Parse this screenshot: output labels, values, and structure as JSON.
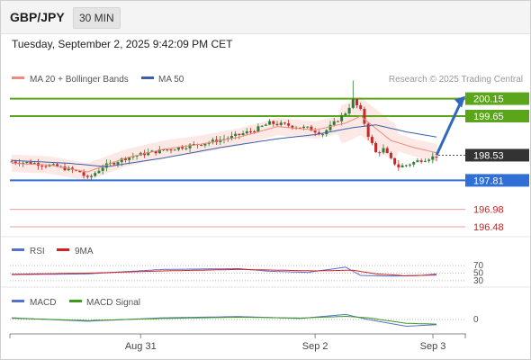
{
  "header": {
    "symbol": "GBP/JPY",
    "timeframe": "30 MIN"
  },
  "timestamp": "Tuesday, September 2, 2025 9:42:09 PM CET",
  "legend": {
    "ma20_label": "MA 20 + Bollinger Bands",
    "ma50_label": "MA 50",
    "credit": "Research © 2025 Trading Central",
    "rsi_label": "RSI",
    "rsi_ma_label": "9MA",
    "macd_label": "MACD",
    "macd_signal_label": "MACD Signal"
  },
  "colors": {
    "bull": "#2e7d32",
    "bear": "#c62828",
    "ma20": "#f08a7a",
    "ma50": "#3b5fa8",
    "band": "#fbe0dc",
    "support": "#2f6fd6",
    "resistance": "#5aa519",
    "minor": "#f0a090",
    "current": "#333333",
    "rsi": "#5470d0",
    "rsi_ma": "#d62020",
    "macd": "#5470d0",
    "macd_signal": "#3a9a1a",
    "arrow": "#2f68c0"
  },
  "chart_data": {
    "type": "candlestick",
    "symbol": "GBP/JPY",
    "timeframe": "30 MIN",
    "x_ticks": [
      "Aug 31",
      "Sep 2",
      "Sep 3"
    ],
    "ylim": [
      196.3,
      200.5
    ],
    "current_price": "198.53",
    "levels": [
      {
        "value": 200.15,
        "label": "200.15",
        "kind": "resistance"
      },
      {
        "value": 199.65,
        "label": "199.65",
        "kind": "resistance"
      },
      {
        "value": 197.81,
        "label": "197.81",
        "kind": "support"
      },
      {
        "value": 196.98,
        "label": "196.98",
        "kind": "minor"
      },
      {
        "value": 196.48,
        "label": "196.48",
        "kind": "minor"
      }
    ],
    "forecast": {
      "from": 198.53,
      "to": 200.15
    },
    "price_path": [
      [
        0,
        198.35
      ],
      [
        6,
        198.3
      ],
      [
        12,
        198.2
      ],
      [
        18,
        198.05
      ],
      [
        20,
        197.85
      ],
      [
        24,
        198.2
      ],
      [
        30,
        198.45
      ],
      [
        36,
        198.6
      ],
      [
        44,
        198.75
      ],
      [
        52,
        198.9
      ],
      [
        58,
        199.05
      ],
      [
        64,
        199.25
      ],
      [
        68,
        199.45
      ],
      [
        72,
        199.4
      ],
      [
        78,
        199.3
      ],
      [
        82,
        199.15
      ],
      [
        84,
        199.35
      ],
      [
        88,
        199.75
      ],
      [
        90,
        200.1
      ],
      [
        92,
        199.8
      ],
      [
        94,
        199.1
      ],
      [
        96,
        198.6
      ],
      [
        98,
        198.7
      ],
      [
        100,
        198.4
      ],
      [
        102,
        198.2
      ],
      [
        104,
        198.25
      ],
      [
        108,
        198.4
      ],
      [
        112,
        198.5
      ]
    ],
    "n_candles": 113,
    "ma20": [
      [
        0,
        198.3
      ],
      [
        10,
        198.25
      ],
      [
        20,
        198.05
      ],
      [
        30,
        198.45
      ],
      [
        40,
        198.7
      ],
      [
        50,
        198.85
      ],
      [
        60,
        199.05
      ],
      [
        70,
        199.35
      ],
      [
        80,
        199.25
      ],
      [
        88,
        199.45
      ],
      [
        92,
        199.65
      ],
      [
        96,
        199.3
      ],
      [
        100,
        198.95
      ],
      [
        106,
        198.75
      ],
      [
        112,
        198.6
      ]
    ],
    "ma50": [
      [
        0,
        198.38
      ],
      [
        15,
        198.3
      ],
      [
        25,
        198.2
      ],
      [
        40,
        198.45
      ],
      [
        55,
        198.75
      ],
      [
        70,
        199.0
      ],
      [
        80,
        199.12
      ],
      [
        90,
        199.32
      ],
      [
        96,
        199.4
      ],
      [
        104,
        199.2
      ],
      [
        112,
        199.05
      ]
    ],
    "rsi": {
      "ticks": [
        "70",
        "50",
        "30"
      ],
      "ylim": [
        20,
        80
      ],
      "values": [
        [
          0,
          46
        ],
        [
          20,
          48
        ],
        [
          40,
          60
        ],
        [
          60,
          62
        ],
        [
          68,
          55
        ],
        [
          78,
          52
        ],
        [
          88,
          66
        ],
        [
          92,
          44
        ],
        [
          100,
          42
        ],
        [
          108,
          44
        ],
        [
          112,
          48
        ]
      ],
      "ma": [
        [
          0,
          47
        ],
        [
          20,
          50
        ],
        [
          40,
          56
        ],
        [
          60,
          60
        ],
        [
          80,
          56
        ],
        [
          90,
          58
        ],
        [
          96,
          48
        ],
        [
          104,
          43
        ],
        [
          112,
          45
        ]
      ]
    },
    "macd": {
      "ticks": [
        "0"
      ],
      "ylim": [
        -0.6,
        0.6
      ],
      "values": [
        [
          0,
          0.08
        ],
        [
          20,
          -0.08
        ],
        [
          40,
          0.08
        ],
        [
          60,
          0.14
        ],
        [
          76,
          0.05
        ],
        [
          88,
          0.24
        ],
        [
          94,
          0.0
        ],
        [
          104,
          -0.32
        ],
        [
          112,
          -0.25
        ]
      ],
      "signal": [
        [
          0,
          0.06
        ],
        [
          20,
          -0.05
        ],
        [
          40,
          0.05
        ],
        [
          60,
          0.11
        ],
        [
          76,
          0.07
        ],
        [
          88,
          0.15
        ],
        [
          94,
          0.08
        ],
        [
          104,
          -0.18
        ],
        [
          112,
          -0.22
        ]
      ]
    }
  }
}
